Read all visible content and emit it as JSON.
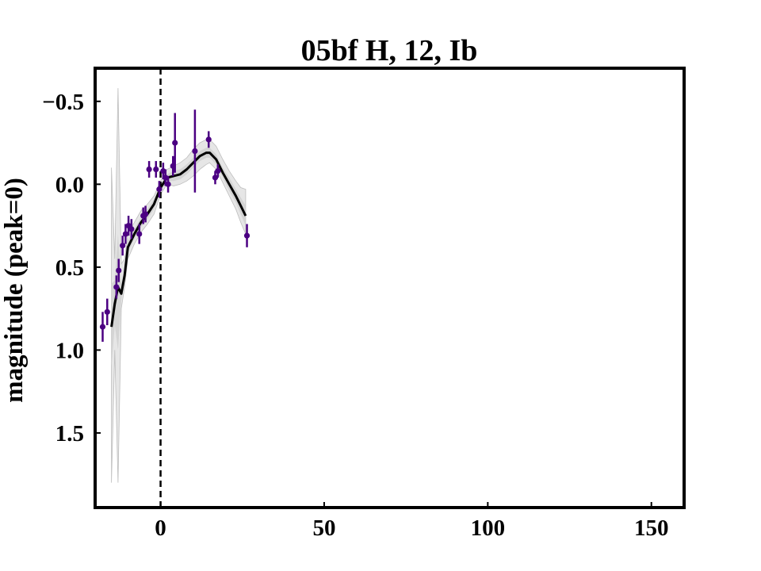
{
  "chart_data": {
    "type": "scatter",
    "title": "05bf H, 12, Ib",
    "xlabel": "",
    "ylabel": "magnitude (peak=0)",
    "xlim": [
      -20,
      160
    ],
    "ylim": [
      -0.7,
      1.95
    ],
    "y_inverted": true,
    "x_ticks": [
      0,
      50,
      100,
      150
    ],
    "x_tick_labels": [
      "0",
      "50",
      "100",
      "150"
    ],
    "y_ticks": [
      -0.5,
      0.0,
      0.5,
      1.0,
      1.5
    ],
    "y_tick_labels": [
      "−0.5",
      "0.0",
      "0.5",
      "1.0",
      "1.5"
    ],
    "peak_marker_x": 0,
    "colors": {
      "points": "#4b0082",
      "fit": "#000000",
      "band_outer": "#e6e6e6",
      "band_inner": "#d2d2d2",
      "frame": "#000000"
    },
    "series": [
      {
        "kind": "observations",
        "points": [
          {
            "x": -17.7,
            "y": 0.86,
            "err": 0.09
          },
          {
            "x": -16.3,
            "y": 0.77,
            "err": 0.08
          },
          {
            "x": -13.5,
            "y": 0.62,
            "err": 0.07
          },
          {
            "x": -12.8,
            "y": 0.52,
            "err": 0.07
          },
          {
            "x": -11.6,
            "y": 0.37,
            "err": 0.06
          },
          {
            "x": -10.7,
            "y": 0.3,
            "err": 0.06
          },
          {
            "x": -9.8,
            "y": 0.25,
            "err": 0.06
          },
          {
            "x": -8.9,
            "y": 0.27,
            "err": 0.06
          },
          {
            "x": -6.5,
            "y": 0.3,
            "err": 0.06
          },
          {
            "x": -5.3,
            "y": 0.19,
            "err": 0.05
          },
          {
            "x": -4.6,
            "y": 0.18,
            "err": 0.05
          },
          {
            "x": -3.5,
            "y": -0.09,
            "err": 0.05
          },
          {
            "x": -1.4,
            "y": -0.09,
            "err": 0.05
          },
          {
            "x": -0.4,
            "y": 0.03,
            "err": 0.05
          },
          {
            "x": 0.8,
            "y": -0.08,
            "err": 0.05
          },
          {
            "x": 1.5,
            "y": -0.04,
            "err": 0.05
          },
          {
            "x": 2.3,
            "y": 0.0,
            "err": 0.05
          },
          {
            "x": 3.8,
            "y": -0.11,
            "err": 0.06
          },
          {
            "x": 4.4,
            "y": -0.25,
            "err": 0.18
          },
          {
            "x": 10.5,
            "y": -0.2,
            "err": 0.25
          },
          {
            "x": 14.7,
            "y": -0.27,
            "err": 0.05
          },
          {
            "x": 16.7,
            "y": -0.04,
            "err": 0.04
          },
          {
            "x": 17.5,
            "y": -0.08,
            "err": 0.04
          },
          {
            "x": 26.4,
            "y": 0.31,
            "err": 0.07
          }
        ]
      },
      {
        "kind": "fit",
        "x": [
          -15.0,
          -14.0,
          -13.0,
          -12.0,
          -11.0,
          -10.0,
          -8.0,
          -6.0,
          -4.0,
          -2.0,
          0.0,
          2.0,
          4.0,
          6.0,
          8.0,
          10.0,
          12.0,
          14.0,
          15.0,
          17.0,
          19.0,
          21.0,
          23.0,
          24.5,
          26.0
        ],
        "y": [
          0.86,
          0.72,
          0.62,
          0.66,
          0.55,
          0.38,
          0.3,
          0.23,
          0.18,
          0.12,
          0.02,
          -0.04,
          -0.05,
          -0.06,
          -0.09,
          -0.13,
          -0.17,
          -0.19,
          -0.19,
          -0.15,
          -0.07,
          0.0,
          0.07,
          0.13,
          0.19
        ],
        "band_outer_low": [
          1.8,
          1.0,
          1.8,
          0.75,
          0.62,
          0.45,
          0.36,
          0.29,
          0.24,
          0.18,
          0.06,
          0.0,
          0.01,
          0.0,
          -0.02,
          -0.05,
          -0.09,
          -0.12,
          -0.13,
          -0.09,
          -0.01,
          0.07,
          0.15,
          0.23,
          0.3
        ],
        "band_outer_high": [
          -0.1,
          0.45,
          -0.58,
          0.48,
          0.45,
          0.3,
          0.23,
          0.16,
          0.12,
          0.07,
          -0.02,
          -0.09,
          -0.11,
          -0.13,
          -0.16,
          -0.21,
          -0.25,
          -0.27,
          -0.27,
          -0.23,
          -0.15,
          -0.08,
          -0.02,
          0.02,
          0.03
        ],
        "band_inner_low": [
          1.1,
          0.85,
          1.0,
          0.7,
          0.58,
          0.41,
          0.33,
          0.26,
          0.21,
          0.15,
          0.04,
          -0.02,
          -0.02,
          -0.03,
          -0.06,
          -0.1,
          -0.14,
          -0.16,
          -0.16,
          -0.12,
          -0.04,
          0.04,
          0.11,
          0.18,
          0.25
        ],
        "band_inner_high": [
          0.6,
          0.58,
          0.3,
          0.6,
          0.51,
          0.34,
          0.27,
          0.2,
          0.15,
          0.09,
          0.0,
          -0.06,
          -0.08,
          -0.09,
          -0.12,
          -0.16,
          -0.2,
          -0.22,
          -0.22,
          -0.18,
          -0.1,
          -0.04,
          0.03,
          0.08,
          0.13
        ]
      }
    ],
    "grid": false,
    "legend": "none"
  }
}
